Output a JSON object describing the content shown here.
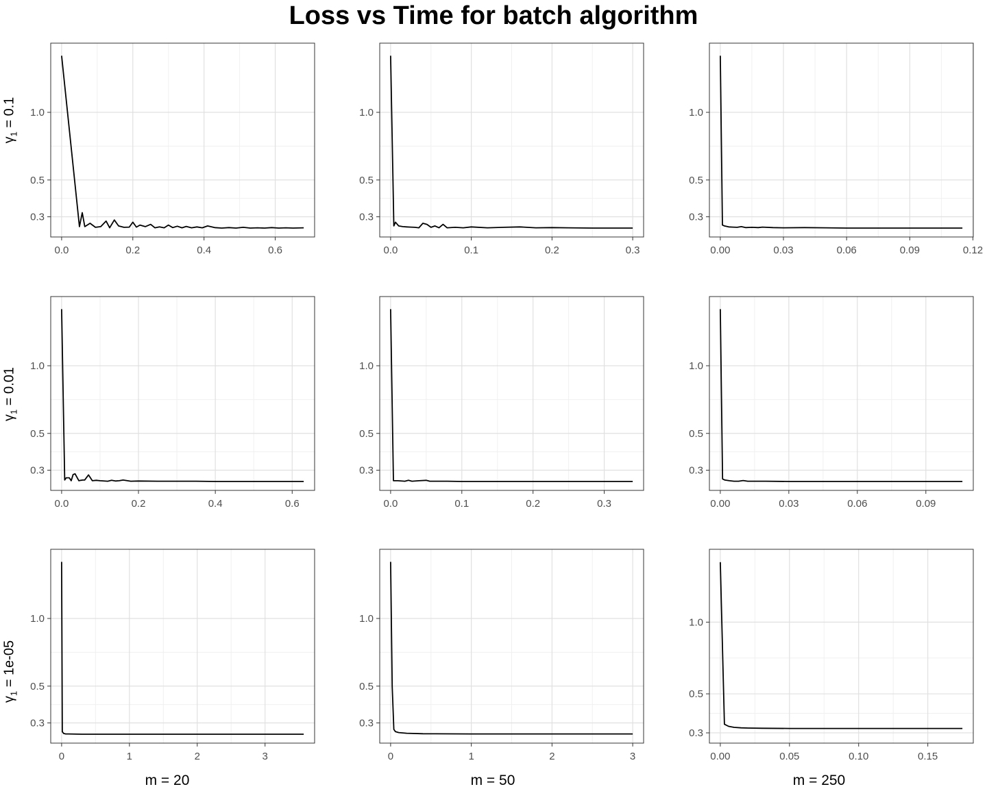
{
  "chart_title": "Loss vs Time for batch algorithm",
  "colors": {
    "line": "#000000",
    "grid_major": "#e0e0e0",
    "grid_minor": "#f0f0f0",
    "panel_border": "#333333",
    "tick_text": "#4d4d4d"
  },
  "column_labels": [
    "m = 20",
    "m = 50",
    "m = 250"
  ],
  "row_labels": [
    {
      "symbol": "γ",
      "subscript": "1",
      "value": "= 0.1"
    },
    {
      "symbol": "γ",
      "subscript": "1",
      "value": "= 0.01"
    },
    {
      "symbol": "γ",
      "subscript": "1",
      "value": "= 1e-05"
    }
  ],
  "chart_data": [
    {
      "type": "line",
      "row": 0,
      "col": 0,
      "xlim": [
        0,
        0.68
      ],
      "ylim": [
        0.245,
        1.6
      ],
      "xticks": [
        0,
        0.2,
        0.4,
        0.6
      ],
      "xtick_labels": [
        "0.0",
        "0.2",
        "0.4",
        "0.6"
      ],
      "yticks": [
        0.3,
        0.5,
        1.0
      ],
      "ytick_labels": [
        "0.3",
        "0.5",
        "1.0"
      ],
      "x": [
        0,
        0.05,
        0.058,
        0.065,
        0.08,
        0.095,
        0.11,
        0.125,
        0.135,
        0.148,
        0.16,
        0.175,
        0.19,
        0.2,
        0.21,
        0.22,
        0.235,
        0.25,
        0.262,
        0.275,
        0.288,
        0.3,
        0.312,
        0.325,
        0.338,
        0.35,
        0.365,
        0.38,
        0.395,
        0.41,
        0.43,
        0.45,
        0.47,
        0.49,
        0.51,
        0.53,
        0.55,
        0.57,
        0.59,
        0.61,
        0.63,
        0.65,
        0.68
      ],
      "y": [
        1.55,
        0.255,
        0.32,
        0.255,
        0.27,
        0.252,
        0.255,
        0.28,
        0.25,
        0.285,
        0.258,
        0.252,
        0.253,
        0.275,
        0.253,
        0.262,
        0.255,
        0.265,
        0.25,
        0.254,
        0.25,
        0.262,
        0.251,
        0.257,
        0.25,
        0.256,
        0.25,
        0.254,
        0.25,
        0.258,
        0.251,
        0.249,
        0.251,
        0.249,
        0.252,
        0.249,
        0.25,
        0.249,
        0.251,
        0.249,
        0.25,
        0.249,
        0.25
      ]
    },
    {
      "type": "line",
      "row": 0,
      "col": 1,
      "xlim": [
        0,
        0.3
      ],
      "ylim": [
        0.245,
        1.6
      ],
      "xticks": [
        0,
        0.1,
        0.2,
        0.3
      ],
      "xtick_labels": [
        "0.0",
        "0.1",
        "0.2",
        "0.3"
      ],
      "yticks": [
        0.3,
        0.5,
        1.0
      ],
      "ytick_labels": [
        "0.3",
        "0.5",
        "1.0"
      ],
      "x": [
        0,
        0.004,
        0.006,
        0.01,
        0.015,
        0.02,
        0.025,
        0.03,
        0.035,
        0.04,
        0.045,
        0.05,
        0.055,
        0.06,
        0.065,
        0.07,
        0.08,
        0.09,
        0.1,
        0.12,
        0.14,
        0.16,
        0.18,
        0.2,
        0.22,
        0.25,
        0.28,
        0.3
      ],
      "y": [
        1.55,
        0.258,
        0.275,
        0.258,
        0.255,
        0.254,
        0.253,
        0.252,
        0.25,
        0.27,
        0.265,
        0.252,
        0.258,
        0.25,
        0.265,
        0.25,
        0.252,
        0.25,
        0.254,
        0.25,
        0.252,
        0.254,
        0.25,
        0.251,
        0.25,
        0.249,
        0.249,
        0.249
      ]
    },
    {
      "type": "line",
      "row": 0,
      "col": 2,
      "xlim": [
        0,
        0.115
      ],
      "ylim": [
        0.245,
        1.6
      ],
      "xticks": [
        0,
        0.03,
        0.06,
        0.09,
        0.12
      ],
      "xtick_labels": [
        "0.00",
        "0.03",
        "0.06",
        "0.09",
        "0.12"
      ],
      "yticks": [
        0.3,
        0.5,
        1.0
      ],
      "ytick_labels": [
        "0.3",
        "0.5",
        "1.0"
      ],
      "x": [
        0,
        0.001,
        0.002,
        0.004,
        0.006,
        0.008,
        0.01,
        0.012,
        0.015,
        0.018,
        0.02,
        0.025,
        0.03,
        0.04,
        0.05,
        0.06,
        0.08,
        0.1,
        0.115
      ],
      "y": [
        1.55,
        0.262,
        0.258,
        0.254,
        0.253,
        0.252,
        0.255,
        0.251,
        0.252,
        0.251,
        0.253,
        0.251,
        0.25,
        0.251,
        0.25,
        0.249,
        0.249,
        0.249,
        0.249
      ]
    },
    {
      "type": "line",
      "row": 1,
      "col": 0,
      "xlim": [
        0,
        0.63
      ],
      "ylim": [
        0.245,
        1.6
      ],
      "xticks": [
        0,
        0.2,
        0.4,
        0.6
      ],
      "xtick_labels": [
        "0.0",
        "0.2",
        "0.4",
        "0.6"
      ],
      "yticks": [
        0.3,
        0.5,
        1.0
      ],
      "ytick_labels": [
        "0.3",
        "0.5",
        "1.0"
      ],
      "x": [
        0,
        0.008,
        0.012,
        0.02,
        0.025,
        0.03,
        0.035,
        0.045,
        0.05,
        0.055,
        0.06,
        0.07,
        0.08,
        0.09,
        0.1,
        0.12,
        0.13,
        0.14,
        0.15,
        0.16,
        0.18,
        0.2,
        0.25,
        0.3,
        0.35,
        0.4,
        0.45,
        0.5,
        0.55,
        0.6,
        0.63
      ],
      "y": [
        1.55,
        0.255,
        0.265,
        0.265,
        0.252,
        0.28,
        0.283,
        0.252,
        0.254,
        0.255,
        0.255,
        0.278,
        0.252,
        0.254,
        0.252,
        0.25,
        0.254,
        0.251,
        0.252,
        0.255,
        0.25,
        0.251,
        0.25,
        0.25,
        0.25,
        0.249,
        0.249,
        0.249,
        0.249,
        0.249,
        0.249
      ]
    },
    {
      "type": "line",
      "row": 1,
      "col": 1,
      "xlim": [
        0,
        0.34
      ],
      "ylim": [
        0.245,
        1.6
      ],
      "xticks": [
        0,
        0.1,
        0.2,
        0.3
      ],
      "xtick_labels": [
        "0.0",
        "0.1",
        "0.2",
        "0.3"
      ],
      "yticks": [
        0.3,
        0.5,
        1.0
      ],
      "ytick_labels": [
        "0.3",
        "0.5",
        "1.0"
      ],
      "x": [
        0,
        0.004,
        0.01,
        0.02,
        0.025,
        0.03,
        0.04,
        0.05,
        0.055,
        0.06,
        0.08,
        0.1,
        0.15,
        0.2,
        0.25,
        0.3,
        0.34
      ],
      "y": [
        1.55,
        0.252,
        0.252,
        0.25,
        0.254,
        0.25,
        0.252,
        0.254,
        0.25,
        0.25,
        0.25,
        0.249,
        0.249,
        0.249,
        0.249,
        0.249,
        0.249
      ]
    },
    {
      "type": "line",
      "row": 1,
      "col": 2,
      "xlim": [
        0,
        0.106
      ],
      "ylim": [
        0.245,
        1.6
      ],
      "xticks": [
        0,
        0.03,
        0.06,
        0.09
      ],
      "xtick_labels": [
        "0.00",
        "0.03",
        "0.06",
        "0.09"
      ],
      "yticks": [
        0.3,
        0.5,
        1.0
      ],
      "ytick_labels": [
        "0.3",
        "0.5",
        "1.0"
      ],
      "x": [
        0,
        0.001,
        0.002,
        0.004,
        0.006,
        0.008,
        0.01,
        0.012,
        0.015,
        0.02,
        0.03,
        0.05,
        0.07,
        0.09,
        0.106
      ],
      "y": [
        1.55,
        0.26,
        0.255,
        0.252,
        0.25,
        0.25,
        0.253,
        0.25,
        0.25,
        0.25,
        0.249,
        0.249,
        0.249,
        0.249,
        0.249
      ]
    },
    {
      "type": "line",
      "row": 2,
      "col": 0,
      "xlim": [
        0,
        3.57
      ],
      "ylim": [
        0.245,
        1.6
      ],
      "xticks": [
        0,
        1,
        2,
        3
      ],
      "xtick_labels": [
        "0",
        "1",
        "2",
        "3"
      ],
      "yticks": [
        0.3,
        0.5,
        1.0
      ],
      "ytick_labels": [
        "0.3",
        "0.5",
        "1.0"
      ],
      "x": [
        0,
        0.01,
        0.03,
        0.06,
        0.1,
        0.3,
        1,
        2,
        3,
        3.57
      ],
      "y": [
        1.55,
        0.26,
        0.252,
        0.25,
        0.25,
        0.249,
        0.249,
        0.249,
        0.249,
        0.249
      ]
    },
    {
      "type": "line",
      "row": 2,
      "col": 1,
      "xlim": [
        0,
        3.0
      ],
      "ylim": [
        0.245,
        1.6
      ],
      "xticks": [
        0,
        1,
        2,
        3
      ],
      "xtick_labels": [
        "0",
        "1",
        "2",
        "3"
      ],
      "yticks": [
        0.3,
        0.5,
        1.0
      ],
      "ytick_labels": [
        "0.3",
        "0.5",
        "1.0"
      ],
      "x": [
        0,
        0.02,
        0.04,
        0.06,
        0.1,
        0.2,
        0.4,
        1,
        2,
        3
      ],
      "y": [
        1.55,
        0.5,
        0.27,
        0.26,
        0.256,
        0.253,
        0.251,
        0.25,
        0.25,
        0.25
      ]
    },
    {
      "type": "line",
      "row": 2,
      "col": 2,
      "xlim": [
        0,
        0.175
      ],
      "ylim": [
        0.29,
        1.6
      ],
      "xticks": [
        0,
        0.05,
        0.1,
        0.15
      ],
      "xtick_labels": [
        "0.00",
        "0.05",
        "0.10",
        "0.15"
      ],
      "yticks": [
        0.3,
        0.5,
        1.0
      ],
      "ytick_labels": [
        "0.3",
        "0.5",
        "1.0"
      ],
      "x": [
        0,
        0.003,
        0.006,
        0.01,
        0.015,
        0.02,
        0.03,
        0.05,
        0.08,
        0.12,
        0.175
      ],
      "y": [
        1.55,
        0.34,
        0.33,
        0.325,
        0.323,
        0.322,
        0.321,
        0.32,
        0.32,
        0.32,
        0.32
      ]
    }
  ]
}
